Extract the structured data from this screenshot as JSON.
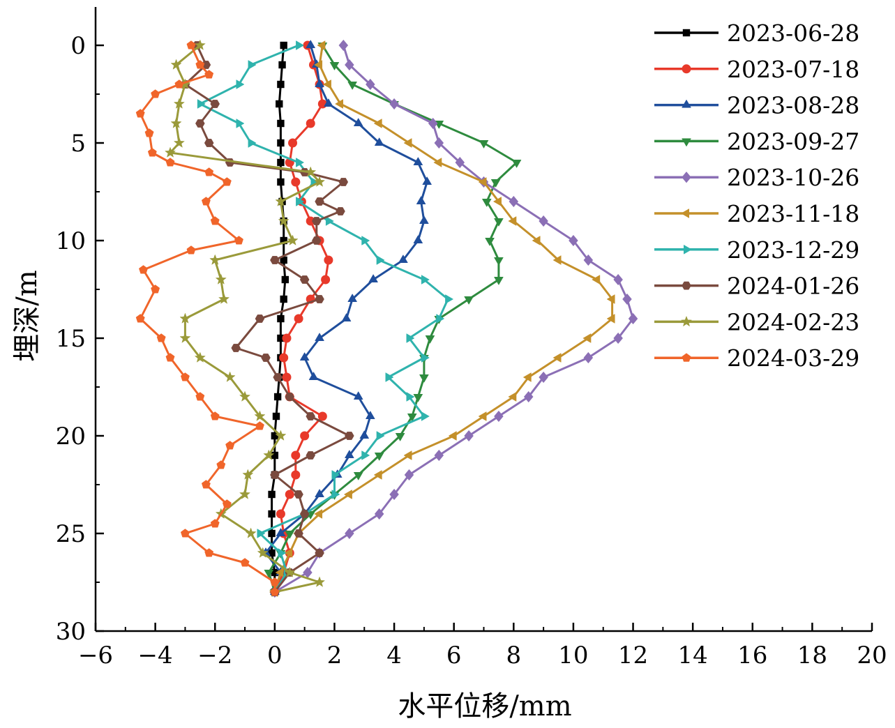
{
  "chart_data": {
    "type": "line",
    "xlabel": "水平位移/mm",
    "ylabel": "埋深/m",
    "xlim": [
      -6,
      20
    ],
    "ylim": [
      0,
      30
    ],
    "y_inverted": true,
    "x_ticks": [
      -6,
      -4,
      -2,
      0,
      2,
      4,
      6,
      8,
      10,
      12,
      14,
      16,
      18,
      20
    ],
    "x_tick_labels": [
      "−6",
      "−4",
      "−2",
      "0",
      "2",
      "4",
      "6",
      "8",
      "10",
      "12",
      "14",
      "16",
      "18",
      "20"
    ],
    "y_ticks": [
      0,
      5,
      10,
      15,
      20,
      25,
      30
    ],
    "y_tick_labels": [
      "0",
      "5",
      "10",
      "15",
      "20",
      "25",
      "30"
    ],
    "grid": false,
    "legend_position": "top-right",
    "series": [
      {
        "name": "2023-06-28",
        "color": "#000000",
        "marker": "square",
        "points": [
          [
            0.3,
            0
          ],
          [
            0.25,
            1
          ],
          [
            0.2,
            2
          ],
          [
            0.15,
            3
          ],
          [
            0.2,
            4
          ],
          [
            0.2,
            5
          ],
          [
            0.2,
            6
          ],
          [
            0.2,
            7
          ],
          [
            0.25,
            8
          ],
          [
            0.3,
            9
          ],
          [
            0.3,
            10
          ],
          [
            0.3,
            11
          ],
          [
            0.35,
            12
          ],
          [
            0.3,
            13
          ],
          [
            0.2,
            14
          ],
          [
            0.2,
            15
          ],
          [
            0.2,
            16
          ],
          [
            0.15,
            17
          ],
          [
            0.1,
            18
          ],
          [
            0.05,
            19
          ],
          [
            0,
            20
          ],
          [
            0,
            21
          ],
          [
            0,
            22
          ],
          [
            -0.1,
            23
          ],
          [
            -0.1,
            24
          ],
          [
            -0.1,
            25
          ],
          [
            -0.1,
            26
          ],
          [
            0,
            27
          ],
          [
            0,
            28
          ]
        ]
      },
      {
        "name": "2023-07-18",
        "color": "#e8392a",
        "marker": "circle",
        "points": [
          [
            1.1,
            0
          ],
          [
            1.3,
            1
          ],
          [
            1.5,
            2
          ],
          [
            1.6,
            3
          ],
          [
            1.2,
            4
          ],
          [
            0.6,
            5
          ],
          [
            0.5,
            6
          ],
          [
            0.7,
            7
          ],
          [
            0.9,
            8
          ],
          [
            1.2,
            9
          ],
          [
            1.5,
            10
          ],
          [
            1.8,
            11
          ],
          [
            1.7,
            12
          ],
          [
            1.2,
            13
          ],
          [
            0.8,
            14
          ],
          [
            0.4,
            15
          ],
          [
            0.3,
            16
          ],
          [
            0.4,
            17
          ],
          [
            0.5,
            18
          ],
          [
            1.6,
            19
          ],
          [
            1.0,
            20
          ],
          [
            0.7,
            21
          ],
          [
            0.7,
            22
          ],
          [
            0.5,
            23
          ],
          [
            0.2,
            24
          ],
          [
            0.3,
            25
          ],
          [
            0.5,
            26
          ],
          [
            0.3,
            27
          ],
          [
            0,
            28
          ]
        ]
      },
      {
        "name": "2023-08-28",
        "color": "#1f4e9c",
        "marker": "triangle-up",
        "points": [
          [
            1.2,
            0
          ],
          [
            1.4,
            1
          ],
          [
            1.5,
            2
          ],
          [
            1.8,
            3
          ],
          [
            2.8,
            4
          ],
          [
            3.5,
            5
          ],
          [
            4.8,
            6
          ],
          [
            5.1,
            7
          ],
          [
            4.9,
            8
          ],
          [
            5.0,
            9
          ],
          [
            4.8,
            10
          ],
          [
            4.3,
            11
          ],
          [
            3.3,
            12
          ],
          [
            2.6,
            13
          ],
          [
            2.4,
            14
          ],
          [
            1.5,
            15
          ],
          [
            1.0,
            16
          ],
          [
            1.3,
            17
          ],
          [
            2.8,
            18
          ],
          [
            3.2,
            19
          ],
          [
            3.0,
            20
          ],
          [
            2.5,
            21
          ],
          [
            2.1,
            22
          ],
          [
            1.5,
            23
          ],
          [
            1.0,
            24
          ],
          [
            0.2,
            25
          ],
          [
            -0.3,
            26
          ],
          [
            0.2,
            27
          ],
          [
            0,
            28
          ]
        ]
      },
      {
        "name": "2023-09-27",
        "color": "#2e8b3e",
        "marker": "triangle-down",
        "points": [
          [
            1.6,
            0
          ],
          [
            2.0,
            1
          ],
          [
            2.6,
            2
          ],
          [
            4.0,
            3
          ],
          [
            5.5,
            4
          ],
          [
            7.0,
            5
          ],
          [
            8.1,
            6
          ],
          [
            7.4,
            7
          ],
          [
            7.1,
            8
          ],
          [
            7.5,
            9
          ],
          [
            7.2,
            10
          ],
          [
            7.5,
            11
          ],
          [
            7.5,
            12
          ],
          [
            6.5,
            13
          ],
          [
            5.5,
            14
          ],
          [
            5.2,
            15
          ],
          [
            5.0,
            16
          ],
          [
            5.0,
            17
          ],
          [
            4.8,
            18
          ],
          [
            4.6,
            19
          ],
          [
            4.2,
            20
          ],
          [
            3.5,
            21
          ],
          [
            2.8,
            22
          ],
          [
            2.0,
            23
          ],
          [
            1.2,
            24
          ],
          [
            0.5,
            25
          ],
          [
            0.2,
            26
          ],
          [
            -0.2,
            27
          ],
          [
            0,
            28
          ]
        ]
      },
      {
        "name": "2023-10-26",
        "color": "#8b6fb5",
        "marker": "diamond",
        "points": [
          [
            2.3,
            0
          ],
          [
            2.5,
            1
          ],
          [
            3.2,
            2
          ],
          [
            4.0,
            3
          ],
          [
            5.3,
            4
          ],
          [
            5.5,
            5
          ],
          [
            6.2,
            6
          ],
          [
            7.0,
            7
          ],
          [
            8.0,
            8
          ],
          [
            9.0,
            9
          ],
          [
            10.0,
            10
          ],
          [
            10.5,
            11
          ],
          [
            11.5,
            12
          ],
          [
            11.8,
            13
          ],
          [
            12.0,
            14
          ],
          [
            11.5,
            15
          ],
          [
            10.5,
            16
          ],
          [
            9.0,
            17
          ],
          [
            8.5,
            18
          ],
          [
            7.5,
            19
          ],
          [
            6.5,
            20
          ],
          [
            5.5,
            21
          ],
          [
            4.5,
            22
          ],
          [
            4.0,
            23
          ],
          [
            3.5,
            24
          ],
          [
            2.5,
            25
          ],
          [
            1.5,
            26
          ],
          [
            1.1,
            27
          ],
          [
            0,
            28
          ]
        ]
      },
      {
        "name": "2023-11-18",
        "color": "#c4902a",
        "marker": "triangle-left",
        "points": [
          [
            1.6,
            0
          ],
          [
            1.5,
            1
          ],
          [
            1.8,
            2
          ],
          [
            2.2,
            3
          ],
          [
            3.5,
            4
          ],
          [
            4.5,
            5
          ],
          [
            5.5,
            6
          ],
          [
            7.0,
            7
          ],
          [
            7.5,
            8
          ],
          [
            8.0,
            9
          ],
          [
            8.8,
            10
          ],
          [
            9.5,
            11
          ],
          [
            10.8,
            12
          ],
          [
            11.3,
            13
          ],
          [
            11.3,
            14
          ],
          [
            10.5,
            15
          ],
          [
            9.5,
            16
          ],
          [
            8.5,
            17
          ],
          [
            8.0,
            18
          ],
          [
            7.0,
            19
          ],
          [
            6.0,
            20
          ],
          [
            4.5,
            21
          ],
          [
            3.5,
            22
          ],
          [
            2.5,
            23
          ],
          [
            1.5,
            24
          ],
          [
            0.8,
            25
          ],
          [
            0.5,
            26
          ],
          [
            0.2,
            27
          ],
          [
            0,
            28
          ]
        ]
      },
      {
        "name": "2023-12-29",
        "color": "#2fb3ad",
        "marker": "triangle-right",
        "points": [
          [
            0.8,
            0
          ],
          [
            -0.8,
            1
          ],
          [
            -1.2,
            2
          ],
          [
            -2.5,
            3
          ],
          [
            -1.2,
            4
          ],
          [
            -0.8,
            5
          ],
          [
            0.8,
            6
          ],
          [
            1.3,
            7
          ],
          [
            0.8,
            8
          ],
          [
            1.8,
            9
          ],
          [
            3.0,
            10
          ],
          [
            3.5,
            11
          ],
          [
            5.0,
            12
          ],
          [
            5.8,
            13
          ],
          [
            5.5,
            14
          ],
          [
            4.5,
            15
          ],
          [
            5.0,
            16
          ],
          [
            3.8,
            17
          ],
          [
            4.5,
            18
          ],
          [
            5.0,
            19
          ],
          [
            3.5,
            20
          ],
          [
            3.0,
            21
          ],
          [
            2.0,
            22
          ],
          [
            2.0,
            23
          ],
          [
            1.0,
            24
          ],
          [
            -0.5,
            25
          ],
          [
            0.2,
            26
          ],
          [
            0.4,
            27
          ],
          [
            0,
            28
          ]
        ]
      },
      {
        "name": "2024-01-26",
        "color": "#7a4a3e",
        "marker": "hexagon",
        "points": [
          [
            -2.6,
            0
          ],
          [
            -2.3,
            1
          ],
          [
            -3.0,
            2
          ],
          [
            -2.0,
            3
          ],
          [
            -2.5,
            4
          ],
          [
            -2.2,
            5
          ],
          [
            -1.5,
            6
          ],
          [
            1.0,
            6.5
          ],
          [
            2.3,
            7
          ],
          [
            1.5,
            8
          ],
          [
            2.2,
            8.5
          ],
          [
            1.4,
            9
          ],
          [
            1.4,
            10
          ],
          [
            0,
            11
          ],
          [
            1.0,
            12
          ],
          [
            1.5,
            13
          ],
          [
            -0.5,
            14
          ],
          [
            -1.3,
            15.5
          ],
          [
            -0.3,
            16
          ],
          [
            0.1,
            17
          ],
          [
            0.5,
            18
          ],
          [
            1.2,
            19
          ],
          [
            2.5,
            20
          ],
          [
            1.2,
            21
          ],
          [
            0,
            22
          ],
          [
            0.8,
            23
          ],
          [
            1.0,
            24
          ],
          [
            0.8,
            25
          ],
          [
            1.5,
            26
          ],
          [
            0.5,
            27
          ],
          [
            0,
            28
          ]
        ]
      },
      {
        "name": "2024-02-23",
        "color": "#9a9a3a",
        "marker": "star",
        "points": [
          [
            -2.5,
            0
          ],
          [
            -3.3,
            1
          ],
          [
            -3.0,
            2
          ],
          [
            -3.2,
            3
          ],
          [
            -3.3,
            4
          ],
          [
            -3.2,
            5
          ],
          [
            -3.5,
            5.5
          ],
          [
            1.2,
            6.5
          ],
          [
            1.5,
            7
          ],
          [
            0.2,
            8
          ],
          [
            0.3,
            9
          ],
          [
            0.6,
            10
          ],
          [
            -2.0,
            11
          ],
          [
            -1.8,
            12
          ],
          [
            -1.7,
            13
          ],
          [
            -3.0,
            14
          ],
          [
            -3.0,
            15
          ],
          [
            -2.5,
            16
          ],
          [
            -1.5,
            17
          ],
          [
            -1.0,
            18
          ],
          [
            -0.5,
            19
          ],
          [
            0.2,
            20
          ],
          [
            -0.2,
            21
          ],
          [
            -0.9,
            22
          ],
          [
            -1.0,
            23
          ],
          [
            -1.8,
            24
          ],
          [
            -0.8,
            25
          ],
          [
            -0.4,
            26
          ],
          [
            0.5,
            27
          ],
          [
            1.5,
            27.5
          ],
          [
            0,
            28
          ]
        ]
      },
      {
        "name": "2024-03-29",
        "color": "#f0652a",
        "marker": "pentagon",
        "points": [
          [
            -2.8,
            0
          ],
          [
            -2.5,
            1
          ],
          [
            -2.2,
            1.5
          ],
          [
            -3.2,
            2
          ],
          [
            -4.0,
            2.5
          ],
          [
            -4.5,
            3.5
          ],
          [
            -4.2,
            4.5
          ],
          [
            -4.1,
            5.5
          ],
          [
            -3.5,
            6
          ],
          [
            -2.2,
            6.5
          ],
          [
            -1.6,
            7
          ],
          [
            -2.3,
            8
          ],
          [
            -2.0,
            9
          ],
          [
            -1.2,
            10
          ],
          [
            -2.8,
            10.5
          ],
          [
            -4.4,
            11.5
          ],
          [
            -4.0,
            12.5
          ],
          [
            -4.5,
            14
          ],
          [
            -3.8,
            15
          ],
          [
            -3.5,
            16
          ],
          [
            -3.0,
            17
          ],
          [
            -2.5,
            18
          ],
          [
            -2.0,
            19
          ],
          [
            -0.5,
            19.5
          ],
          [
            -1.5,
            20.5
          ],
          [
            -1.8,
            21.5
          ],
          [
            -2.3,
            22.5
          ],
          [
            -1.6,
            23.5
          ],
          [
            -2.0,
            24.5
          ],
          [
            -3.0,
            25
          ],
          [
            -2.2,
            26
          ],
          [
            -1.0,
            26.5
          ],
          [
            0,
            27.5
          ],
          [
            0,
            28
          ]
        ]
      }
    ]
  }
}
